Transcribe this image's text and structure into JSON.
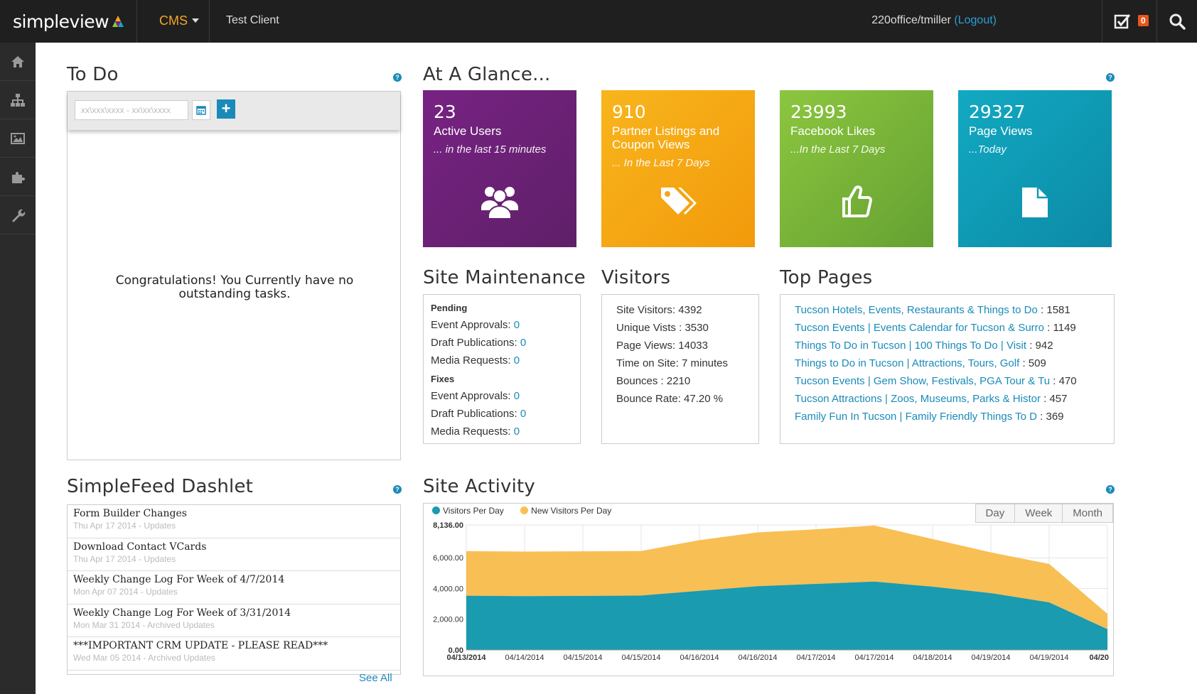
{
  "topbar": {
    "logo": "simpleview",
    "cms_label": "CMS",
    "client": "Test Client",
    "user": "220office/tmiller",
    "logout": "(Logout)",
    "tasks_count": "0"
  },
  "sidebar": {
    "items": [
      "home-icon",
      "sitemap-icon",
      "image-icon",
      "puzzle-icon",
      "wrench-icon"
    ]
  },
  "todo": {
    "title": "To Do",
    "date_placeholder": "xx\\xxx\\xxxx - xx\\xx\\xxxx",
    "empty_message": "Congratulations! You Currently have no outstanding tasks."
  },
  "glance": {
    "title": "At A Glance...",
    "tiles": [
      {
        "number": "23",
        "label": "Active Users",
        "sub": "... in the last 15 minutes",
        "icon": "users-icon",
        "color": "#6b2076"
      },
      {
        "number": "910",
        "label": "Partner Listings and Coupon Views",
        "sub": "... In the Last 7 Days",
        "icon": "tags-icon",
        "color": "#f5a814"
      },
      {
        "number": "23993",
        "label": "Facebook Likes",
        "sub": "...In the Last 7 Days",
        "icon": "thumbs-up-icon",
        "color": "#7ab43a"
      },
      {
        "number": "29327",
        "label": "Page Views",
        "sub": "...Today",
        "icon": "document-icon",
        "color": "#0f9ab5"
      }
    ]
  },
  "maintenance": {
    "title": "Site Maintenance",
    "pending_label": "Pending",
    "fixes_label": "Fixes",
    "pending": [
      {
        "label": "Event Approvals:",
        "value": "0"
      },
      {
        "label": "Draft Publications:",
        "value": "0"
      },
      {
        "label": "Media Requests:",
        "value": "0"
      }
    ],
    "fixes": [
      {
        "label": "Event Approvals:",
        "value": "0"
      },
      {
        "label": "Draft Publications:",
        "value": "0"
      },
      {
        "label": "Media Requests:",
        "value": "0"
      }
    ]
  },
  "visitors": {
    "title": "Visitors",
    "rows": [
      "Site Visitors: 4392",
      "Unique Vists : 3530",
      "Page Views: 14033",
      "Time on Site: 7 minutes",
      "Bounces : 2210",
      "Bounce Rate: 47.20 %"
    ]
  },
  "top_pages": {
    "title": "Top Pages",
    "items": [
      {
        "link": "Tucson Hotels, Events, Restaurants & Things to Do",
        "count": " : 1581"
      },
      {
        "link": "Tucson Events | Events Calendar for Tucson & Surro",
        "count": " : 1149"
      },
      {
        "link": "Things To Do in Tucson | 100 Things To Do | Visit",
        "count": " : 942"
      },
      {
        "link": "Things to Do in Tucson | Attractions, Tours, Golf",
        "count": " : 509"
      },
      {
        "link": "Tucson Events | Gem Show, Festivals, PGA Tour & Tu",
        "count": " : 470"
      },
      {
        "link": "Tucson Attractions | Zoos, Museums, Parks & Histor",
        "count": " : 457"
      },
      {
        "link": "Family Fun In Tucson | Family Friendly Things To D",
        "count": " : 369"
      }
    ]
  },
  "feed": {
    "title": "SimpleFeed Dashlet",
    "see_all": "See All",
    "items": [
      {
        "title": "Form Builder Changes",
        "meta": "Thu Apr 17 2014 - Updates"
      },
      {
        "title": "Download Contact VCards",
        "meta": "Thu Apr 17 2014 - Updates"
      },
      {
        "title": "Weekly Change Log For Week of 4/7/2014",
        "meta": "Mon Apr 07 2014 - Updates"
      },
      {
        "title": "Weekly Change Log For Week of 3/31/2014",
        "meta": "Mon Mar 31 2014 - Archived Updates"
      },
      {
        "title": "***IMPORTANT CRM UPDATE - PLEASE READ***",
        "meta": "Wed Mar 05 2014 - Archived Updates"
      }
    ]
  },
  "activity": {
    "title": "Site Activity",
    "range_buttons": [
      "Day",
      "Week",
      "Month"
    ]
  },
  "chart_data": {
    "type": "area",
    "stacked": true,
    "x": [
      "04/13/2014",
      "04/14/2014",
      "04/15/2014",
      "04/15/2014",
      "04/16/2014",
      "04/16/2014",
      "04/17/2014",
      "04/17/2014",
      "04/18/2014",
      "04/19/2014",
      "04/19/2014",
      "04/20"
    ],
    "x_tick_labels": [
      "04/13/2014",
      "04/14/2014",
      "04/15/2014",
      "04/15/2014",
      "04/16/2014",
      "04/16/2014",
      "04/17/2014",
      "04/17/2014",
      "04/18/2014",
      "04/19/2014",
      "04/19/2014",
      "04/20"
    ],
    "series": [
      {
        "name": "Visitors Per Day",
        "color": "#1a9bb0",
        "values": [
          3530,
          3500,
          3520,
          3540,
          3850,
          4150,
          4300,
          4450,
          4120,
          3700,
          3100,
          1350
        ]
      },
      {
        "name": "New Visitors Per Day",
        "color": "#f8bf54",
        "values": [
          2900,
          2900,
          2900,
          2900,
          3300,
          3500,
          3550,
          3650,
          3100,
          2650,
          2500,
          1000
        ]
      }
    ],
    "ylim": [
      0,
      8136
    ],
    "y_ticks": [
      "0.00",
      "2,000.00",
      "4,000.00",
      "6,000.00",
      "8,136.00"
    ],
    "y_tick_values": [
      0,
      2000,
      4000,
      6000,
      8136
    ],
    "grid": true,
    "legend_position": "top-left"
  }
}
